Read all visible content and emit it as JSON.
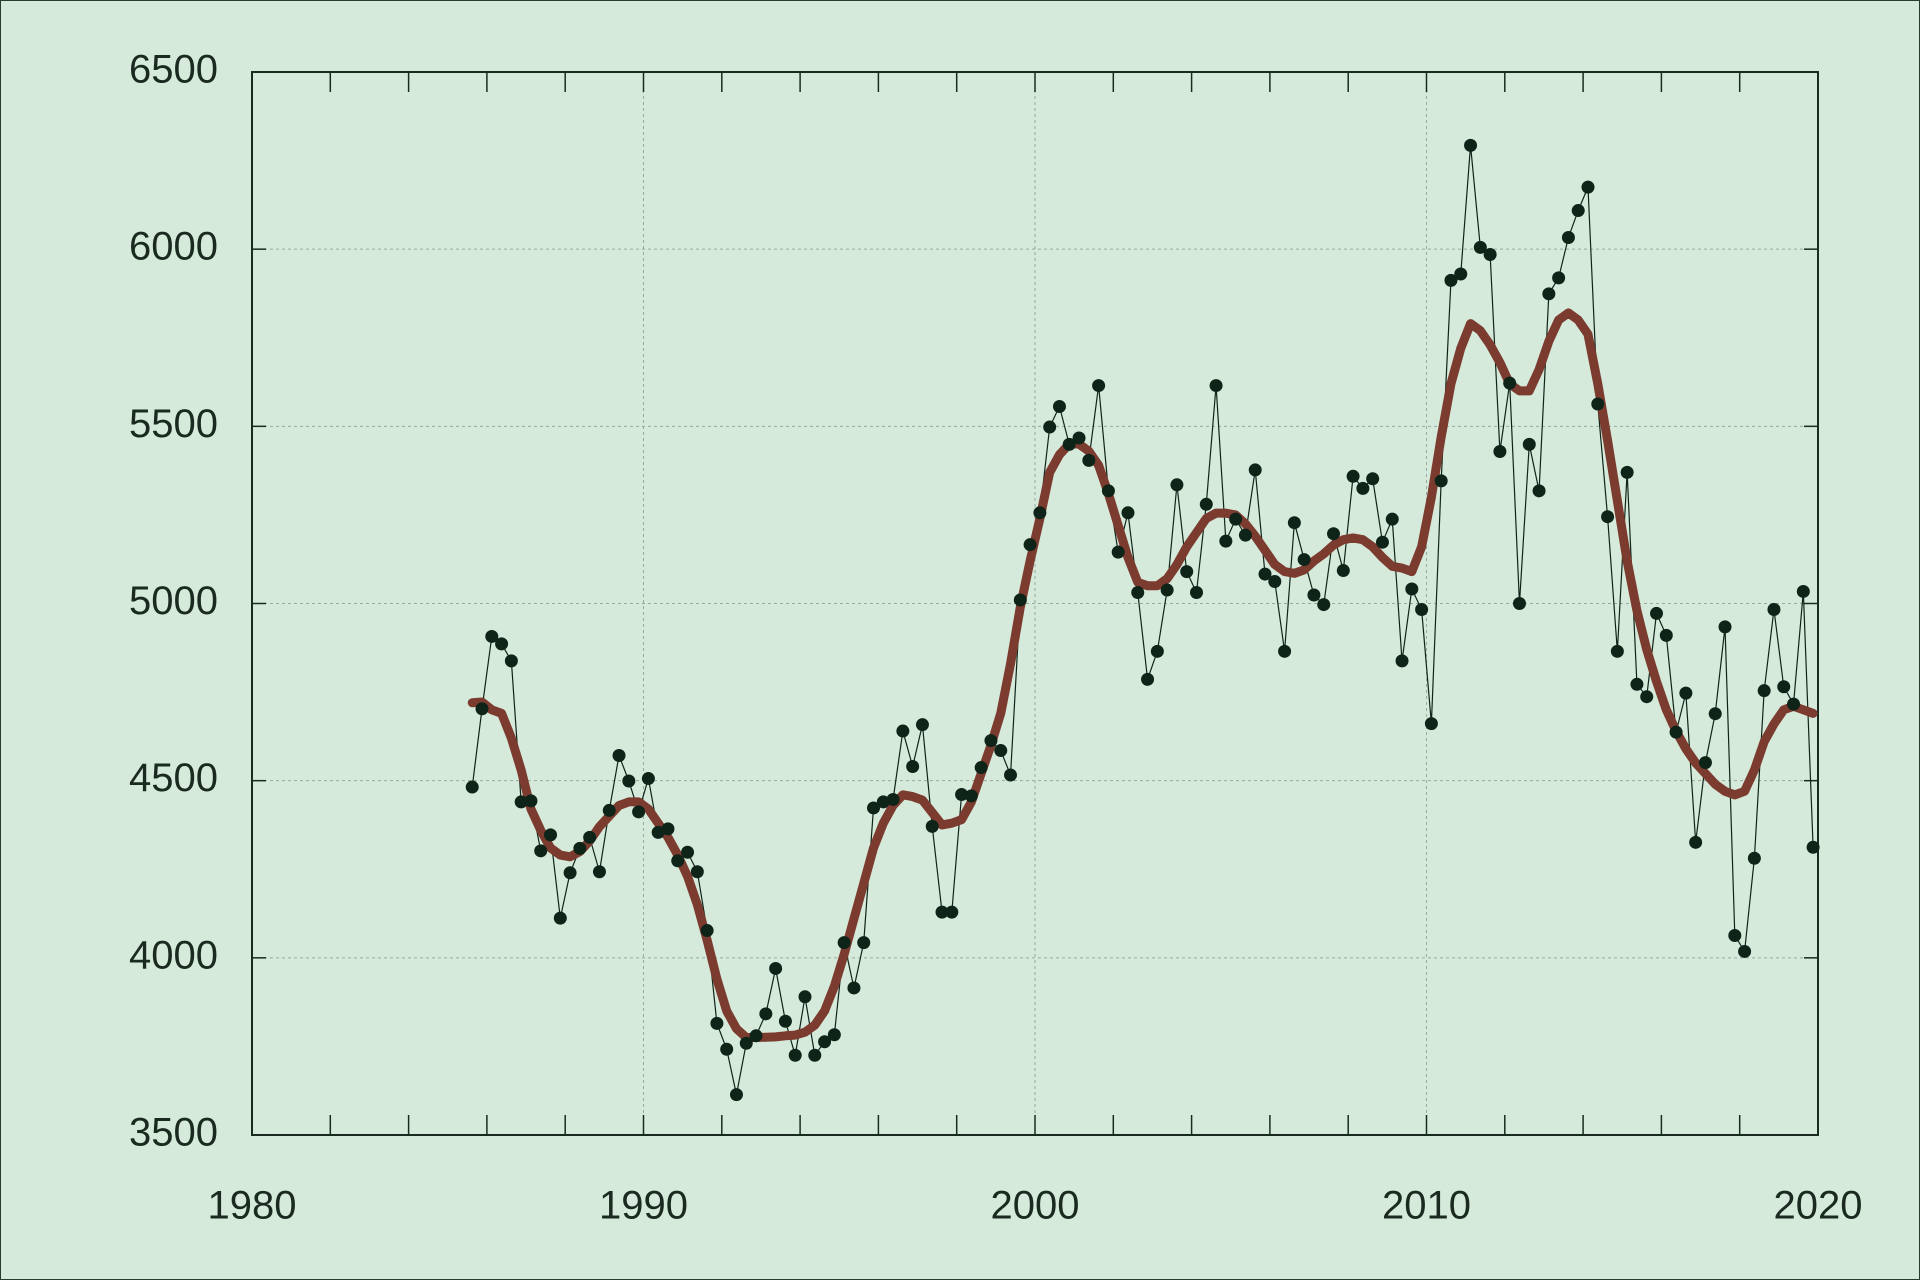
{
  "chart_data": {
    "type": "line",
    "background": "#d6eadb",
    "xlim": [
      1980,
      2020
    ],
    "ylim": [
      3500,
      6500
    ],
    "xticks": [
      1980,
      1990,
      2000,
      2010,
      2020
    ],
    "xminorticks": [
      1982,
      1984,
      1986,
      1988,
      1992,
      1994,
      1996,
      1998,
      2002,
      2004,
      2006,
      2008,
      2012,
      2014,
      2016,
      2018
    ],
    "yticks": [
      3500,
      4000,
      4500,
      5000,
      5500,
      6000,
      6500
    ],
    "grid": true,
    "x": [
      1985.625,
      1985.875,
      1986.125,
      1986.375,
      1986.625,
      1986.875,
      1987.125,
      1987.375,
      1987.625,
      1987.875,
      1988.125,
      1988.375,
      1988.625,
      1988.875,
      1989.125,
      1989.375,
      1989.625,
      1989.875,
      1990.125,
      1990.375,
      1990.625,
      1990.875,
      1991.125,
      1991.375,
      1991.625,
      1991.875,
      1992.125,
      1992.375,
      1992.625,
      1992.875,
      1993.125,
      1993.375,
      1993.625,
      1993.875,
      1994.125,
      1994.375,
      1994.625,
      1994.875,
      1995.125,
      1995.375,
      1995.625,
      1995.875,
      1996.125,
      1996.375,
      1996.625,
      1996.875,
      1997.125,
      1997.375,
      1997.625,
      1997.875,
      1998.125,
      1998.375,
      1998.625,
      1998.875,
      1999.125,
      1999.375,
      1999.625,
      1999.875,
      2000.125,
      2000.375,
      2000.625,
      2000.875,
      2001.125,
      2001.375,
      2001.625,
      2001.875,
      2002.125,
      2002.375,
      2002.625,
      2002.875,
      2003.125,
      2003.375,
      2003.625,
      2003.875,
      2004.125,
      2004.375,
      2004.625,
      2004.875,
      2005.125,
      2005.375,
      2005.625,
      2005.875,
      2006.125,
      2006.375,
      2006.625,
      2006.875,
      2007.125,
      2007.375,
      2007.625,
      2007.875,
      2008.125,
      2008.375,
      2008.625,
      2008.875,
      2009.125,
      2009.375,
      2009.625,
      2009.875,
      2010.125,
      2010.375,
      2010.625,
      2010.875,
      2011.125,
      2011.375,
      2011.625,
      2011.875,
      2012.125,
      2012.375,
      2012.625,
      2012.875,
      2013.125,
      2013.375,
      2013.625,
      2013.875,
      2014.125,
      2014.375,
      2014.625,
      2014.875,
      2015.125,
      2015.375,
      2015.625,
      2015.875,
      2016.125,
      2016.375,
      2016.625,
      2016.875,
      2017.125,
      2017.375,
      2017.625,
      2017.875,
      2018.125,
      2018.375,
      2018.625,
      2018.875,
      2019.125,
      2019.375,
      2019.625,
      2019.875
    ],
    "series": [
      {
        "color": "#0f2419",
        "line_width": 1.2,
        "markers": true,
        "values": [
          4482,
          4703,
          4907,
          4886,
          4838,
          4440,
          4443,
          4302,
          4347,
          4112,
          4240,
          4309,
          4340,
          4243,
          4416,
          4571,
          4499,
          4412,
          4506,
          4354,
          4364,
          4274,
          4298,
          4243,
          4077,
          3815,
          3742,
          3614,
          3759,
          3780,
          3842,
          3970,
          3821,
          3725,
          3890,
          3725,
          3763,
          3783,
          4043,
          3915,
          4043,
          4423,
          4440,
          4447,
          4640,
          4540,
          4658,
          4371,
          4129,
          4129,
          4461,
          4457,
          4537,
          4613,
          4585,
          4516,
          5010,
          5166,
          5256,
          5498,
          5556,
          5449,
          5467,
          5404,
          5615,
          5318,
          5145,
          5256,
          5031,
          4786,
          4865,
          5038,
          5335,
          5090,
          5031,
          5280,
          5615,
          5176,
          5238,
          5193,
          5377,
          5083,
          5062,
          4865,
          5228,
          5124,
          5024,
          4997,
          5197,
          5093,
          5359,
          5325,
          5352,
          5173,
          5238,
          4838,
          5041,
          4983,
          4661,
          5346,
          5912,
          5930,
          6293,
          6005,
          5985,
          5429,
          5622,
          5000,
          5449,
          5318,
          5874,
          5919,
          6033,
          6109,
          6175,
          5563,
          5245,
          4865,
          5370,
          4772,
          4737,
          4972,
          4910,
          4637,
          4747,
          4326,
          4551,
          4689,
          4934,
          4063,
          4018,
          4281,
          4754,
          4983,
          4765,
          4716,
          5034,
          4312
        ]
      },
      {
        "color": "#7b3b2e",
        "line_width": 9,
        "markers": false,
        "values": [
          4720,
          4722,
          4700,
          4690,
          4620,
          4530,
          4420,
          4360,
          4310,
          4290,
          4285,
          4300,
          4330,
          4370,
          4400,
          4430,
          4440,
          4440,
          4420,
          4380,
          4340,
          4290,
          4230,
          4150,
          4050,
          3940,
          3850,
          3800,
          3775,
          3775,
          3776,
          3777,
          3780,
          3782,
          3790,
          3810,
          3850,
          3920,
          4010,
          4110,
          4210,
          4310,
          4380,
          4430,
          4460,
          4455,
          4445,
          4410,
          4375,
          4380,
          4390,
          4440,
          4520,
          4600,
          4690,
          4830,
          4990,
          5120,
          5240,
          5370,
          5420,
          5450,
          5450,
          5430,
          5390,
          5310,
          5220,
          5130,
          5060,
          5050,
          5050,
          5070,
          5110,
          5160,
          5200,
          5240,
          5255,
          5255,
          5250,
          5225,
          5190,
          5150,
          5110,
          5090,
          5085,
          5095,
          5120,
          5140,
          5165,
          5180,
          5185,
          5180,
          5160,
          5130,
          5105,
          5100,
          5090,
          5160,
          5300,
          5470,
          5620,
          5720,
          5790,
          5770,
          5730,
          5680,
          5620,
          5600,
          5600,
          5660,
          5740,
          5800,
          5820,
          5800,
          5760,
          5620,
          5460,
          5290,
          5120,
          4980,
          4870,
          4780,
          4700,
          4640,
          4590,
          4550,
          4520,
          4490,
          4470,
          4460,
          4470,
          4530,
          4610,
          4660,
          4700,
          4710,
          4700,
          4690
        ]
      }
    ]
  }
}
